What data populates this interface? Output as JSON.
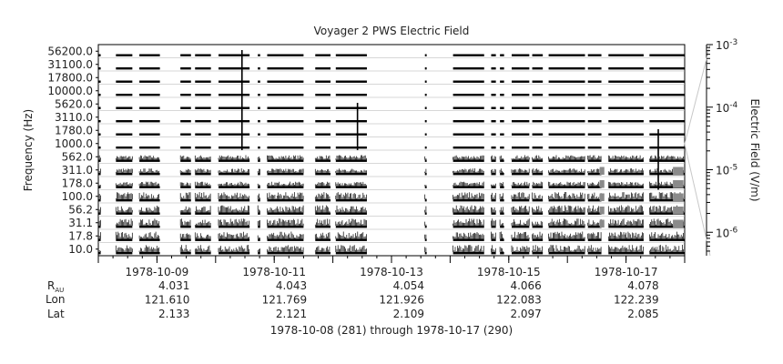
{
  "chart_data": {
    "type": "heatmap",
    "title": "Voyager 2 PWS Electric Field",
    "ylabel": "Frequency (Hz)",
    "colorbar_label": "Electric Field (V/m)",
    "colorbar_scale": "log",
    "colorbar_ticks": [
      {
        "base": "10",
        "exp": "-3"
      },
      {
        "base": "10",
        "exp": "-4"
      },
      {
        "base": "10",
        "exp": "-5"
      },
      {
        "base": "10",
        "exp": "-6"
      }
    ],
    "channels": [
      "56200.0",
      "31100.0",
      "17800.0",
      "10000.0",
      "5620.0",
      "3110.0",
      "1780.0",
      "1000.0",
      "562.0",
      "311.0",
      "178.0",
      "100.0",
      "56.2",
      "31.1",
      "17.8",
      "10.0"
    ],
    "x_tick_labels": [
      "1978-10-09",
      "1978-10-11",
      "1978-10-13",
      "1978-10-15",
      "1978-10-17"
    ],
    "x_range_days": [
      0,
      10
    ],
    "x_major_tick_days": [
      1,
      3,
      5,
      7,
      9
    ],
    "coverage_days": [
      [
        0.0,
        0.04
      ],
      [
        0.3,
        0.58
      ],
      [
        0.7,
        1.05
      ],
      [
        1.4,
        1.58
      ],
      [
        1.65,
        1.92
      ],
      [
        2.05,
        2.58
      ],
      [
        2.72,
        2.76
      ],
      [
        2.88,
        3.5
      ],
      [
        3.7,
        3.96
      ],
      [
        4.05,
        4.58
      ],
      [
        5.57,
        5.6
      ],
      [
        6.05,
        6.58
      ],
      [
        6.7,
        6.78
      ],
      [
        6.85,
        6.92
      ],
      [
        7.05,
        7.35
      ],
      [
        7.4,
        7.58
      ],
      [
        7.68,
        8.3
      ],
      [
        8.35,
        8.58
      ],
      [
        8.7,
        9.3
      ],
      [
        9.4,
        10.0
      ]
    ],
    "ephemeris": {
      "labels": {
        "r": "R",
        "r_sub": "AU",
        "lon": "Lon",
        "lat": "Lat"
      },
      "columns": [
        {
          "r": "4.031",
          "lon": "121.610",
          "lat": "2.133"
        },
        {
          "r": "4.043",
          "lon": "121.769",
          "lat": "2.121"
        },
        {
          "r": "4.054",
          "lon": "121.926",
          "lat": "2.109"
        },
        {
          "r": "4.066",
          "lon": "122.083",
          "lat": "2.097"
        },
        {
          "r": "4.078",
          "lon": "122.239",
          "lat": "2.085"
        }
      ]
    },
    "date_range_caption": "1978-10-08 (281) through 1978-10-17 (290)"
  }
}
